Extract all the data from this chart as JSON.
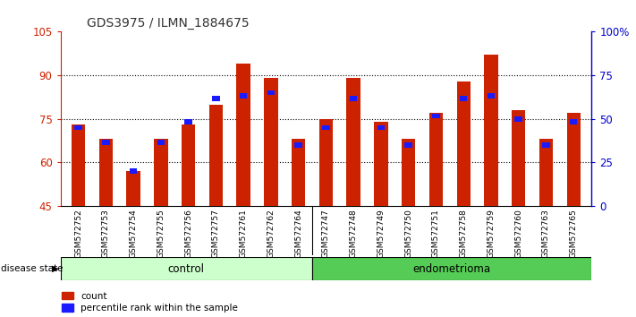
{
  "title": "GDS3975 / ILMN_1884675",
  "samples": [
    "GSM572752",
    "GSM572753",
    "GSM572754",
    "GSM572755",
    "GSM572756",
    "GSM572757",
    "GSM572761",
    "GSM572762",
    "GSM572764",
    "GSM572747",
    "GSM572748",
    "GSM572749",
    "GSM572750",
    "GSM572751",
    "GSM572758",
    "GSM572759",
    "GSM572760",
    "GSM572763",
    "GSM572765"
  ],
  "red_values": [
    73,
    68,
    57,
    68,
    73,
    80,
    94,
    89,
    68,
    75,
    89,
    74,
    68,
    77,
    88,
    97,
    78,
    68,
    77
  ],
  "blue_values": [
    72,
    67,
    57,
    67,
    74,
    82,
    83,
    84,
    66,
    72,
    82,
    72,
    66,
    76,
    82,
    83,
    75,
    66,
    74
  ],
  "control_count": 9,
  "endometrioma_count": 10,
  "control_label": "control",
  "endometrioma_label": "endometrioma",
  "disease_state_label": "disease state",
  "ylim_left": [
    45,
    105
  ],
  "yticks_left": [
    45,
    60,
    75,
    90,
    105
  ],
  "ylim_right": [
    0,
    100
  ],
  "yticks_right": [
    0,
    25,
    50,
    75,
    100
  ],
  "yright_labels": [
    "0",
    "25",
    "50",
    "75",
    "100%"
  ],
  "legend_count": "count",
  "legend_pct": "percentile rank within the sample",
  "bar_color": "#cc2200",
  "blue_color": "#1a1aff",
  "control_bg": "#ccffcc",
  "endo_bg": "#55cc55",
  "left_tick_color": "#cc2200",
  "right_tick_color": "#0000cc",
  "bar_width": 0.5
}
